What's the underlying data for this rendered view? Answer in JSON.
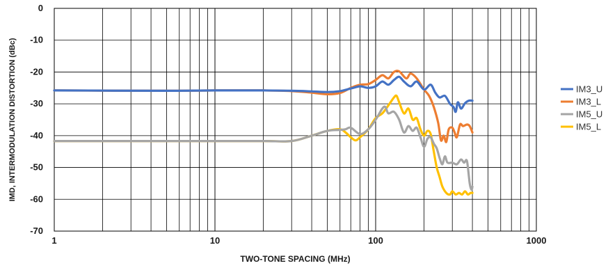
{
  "chart_data": {
    "type": "line",
    "xlabel": "TWO-TONE SPACING (MHz)",
    "ylabel": "IMD, INTERMODULATION DISTORTION (dBc)",
    "x_scale": "log",
    "xlim": [
      1,
      1000
    ],
    "ylim": [
      -70,
      0
    ],
    "x_ticks": [
      1,
      10,
      100,
      1000
    ],
    "x_tick_labels": [
      "1",
      "10",
      "100",
      "1000"
    ],
    "y_ticks": [
      0,
      -10,
      -20,
      -30,
      -40,
      -50,
      -60,
      -70
    ],
    "y_tick_labels": [
      "0",
      "-10",
      "-20",
      "-30",
      "-40",
      "-50",
      "-60",
      "-70"
    ],
    "grid": true,
    "legend_position": "right",
    "series": [
      {
        "name": "IM3_U",
        "color": "#4472C4",
        "points": [
          [
            1,
            -25.8
          ],
          [
            5,
            -25.9
          ],
          [
            10,
            -25.8
          ],
          [
            20,
            -25.8
          ],
          [
            30,
            -25.9
          ],
          [
            40,
            -26.1
          ],
          [
            50,
            -26.3
          ],
          [
            60,
            -26.0
          ],
          [
            70,
            -25.2
          ],
          [
            80,
            -24.5
          ],
          [
            90,
            -25.0
          ],
          [
            100,
            -24.5
          ],
          [
            110,
            -23.0
          ],
          [
            120,
            -24.0
          ],
          [
            130,
            -22.5
          ],
          [
            140,
            -21.5
          ],
          [
            150,
            -23.0
          ],
          [
            165,
            -24.5
          ],
          [
            180,
            -23.0
          ],
          [
            200,
            -25.5
          ],
          [
            220,
            -24.0
          ],
          [
            235,
            -26.5
          ],
          [
            250,
            -28.0
          ],
          [
            270,
            -27.5
          ],
          [
            290,
            -30.0
          ],
          [
            305,
            -31.0
          ],
          [
            315,
            -32.5
          ],
          [
            325,
            -29.5
          ],
          [
            340,
            -31.5
          ],
          [
            360,
            -29.8
          ],
          [
            380,
            -29.0
          ],
          [
            400,
            -29.0
          ]
        ]
      },
      {
        "name": "IM3_L",
        "color": "#ED7D31",
        "points": [
          [
            1,
            -25.8
          ],
          [
            5,
            -25.9
          ],
          [
            10,
            -25.8
          ],
          [
            20,
            -25.8
          ],
          [
            30,
            -26.0
          ],
          [
            40,
            -26.5
          ],
          [
            50,
            -27.0
          ],
          [
            60,
            -26.6
          ],
          [
            70,
            -25.0
          ],
          [
            80,
            -24.0
          ],
          [
            90,
            -23.8
          ],
          [
            100,
            -22.5
          ],
          [
            110,
            -21.0
          ],
          [
            120,
            -22.0
          ],
          [
            130,
            -20.0
          ],
          [
            140,
            -19.8
          ],
          [
            155,
            -22.0
          ],
          [
            165,
            -20.5
          ],
          [
            180,
            -22.0
          ],
          [
            200,
            -25.5
          ],
          [
            215,
            -27.5
          ],
          [
            230,
            -31.0
          ],
          [
            245,
            -36.0
          ],
          [
            255,
            -41.5
          ],
          [
            265,
            -40.0
          ],
          [
            275,
            -42.0
          ],
          [
            285,
            -38.0
          ],
          [
            300,
            -37.5
          ],
          [
            310,
            -39.0
          ],
          [
            320,
            -40.5
          ],
          [
            335,
            -36.5
          ],
          [
            350,
            -37.0
          ],
          [
            370,
            -36.5
          ],
          [
            385,
            -37.0
          ],
          [
            400,
            -39.0
          ]
        ]
      },
      {
        "name": "IM5_U",
        "color": "#A5A5A5",
        "points": [
          [
            1,
            -41.7
          ],
          [
            10,
            -41.7
          ],
          [
            20,
            -41.7
          ],
          [
            30,
            -41.7
          ],
          [
            40,
            -40.0
          ],
          [
            50,
            -38.5
          ],
          [
            60,
            -38.2
          ],
          [
            65,
            -38.0
          ],
          [
            70,
            -37.5
          ],
          [
            80,
            -39.5
          ],
          [
            90,
            -38.0
          ],
          [
            100,
            -35.0
          ],
          [
            110,
            -31.5
          ],
          [
            115,
            -31.0
          ],
          [
            120,
            -33.0
          ],
          [
            130,
            -32.5
          ],
          [
            140,
            -35.0
          ],
          [
            150,
            -39.0
          ],
          [
            160,
            -37.0
          ],
          [
            170,
            -38.5
          ],
          [
            180,
            -37.5
          ],
          [
            190,
            -40.5
          ],
          [
            200,
            -43.5
          ],
          [
            210,
            -41.0
          ],
          [
            220,
            -40.5
          ],
          [
            230,
            -42.5
          ],
          [
            240,
            -44.0
          ],
          [
            250,
            -47.0
          ],
          [
            260,
            -49.0
          ],
          [
            270,
            -46.5
          ],
          [
            280,
            -48.5
          ],
          [
            300,
            -48.5
          ],
          [
            320,
            -49.0
          ],
          [
            340,
            -47.5
          ],
          [
            355,
            -48.5
          ],
          [
            370,
            -48.0
          ],
          [
            385,
            -55.0
          ],
          [
            395,
            -57.0
          ],
          [
            400,
            -56.0
          ]
        ]
      },
      {
        "name": "IM5_L",
        "color": "#FFC000",
        "points": [
          [
            1,
            -41.7
          ],
          [
            10,
            -41.7
          ],
          [
            20,
            -41.7
          ],
          [
            30,
            -41.7
          ],
          [
            40,
            -40.0
          ],
          [
            50,
            -38.5
          ],
          [
            60,
            -38.0
          ],
          [
            65,
            -39.0
          ],
          [
            70,
            -40.5
          ],
          [
            75,
            -41.5
          ],
          [
            80,
            -40.5
          ],
          [
            90,
            -38.0
          ],
          [
            100,
            -34.5
          ],
          [
            110,
            -33.0
          ],
          [
            120,
            -30.5
          ],
          [
            130,
            -28.0
          ],
          [
            135,
            -27.5
          ],
          [
            140,
            -29.5
          ],
          [
            150,
            -33.0
          ],
          [
            160,
            -31.5
          ],
          [
            170,
            -35.0
          ],
          [
            180,
            -34.5
          ],
          [
            190,
            -38.0
          ],
          [
            200,
            -40.0
          ],
          [
            210,
            -38.5
          ],
          [
            220,
            -39.5
          ],
          [
            230,
            -45.0
          ],
          [
            240,
            -50.0
          ],
          [
            250,
            -53.0
          ],
          [
            260,
            -56.0
          ],
          [
            275,
            -58.0
          ],
          [
            290,
            -58.5
          ],
          [
            300,
            -57.5
          ],
          [
            315,
            -58.5
          ],
          [
            330,
            -58.0
          ],
          [
            345,
            -58.5
          ],
          [
            360,
            -57.5
          ],
          [
            375,
            -58.5
          ],
          [
            390,
            -58.0
          ],
          [
            400,
            -58.0
          ]
        ]
      }
    ]
  }
}
